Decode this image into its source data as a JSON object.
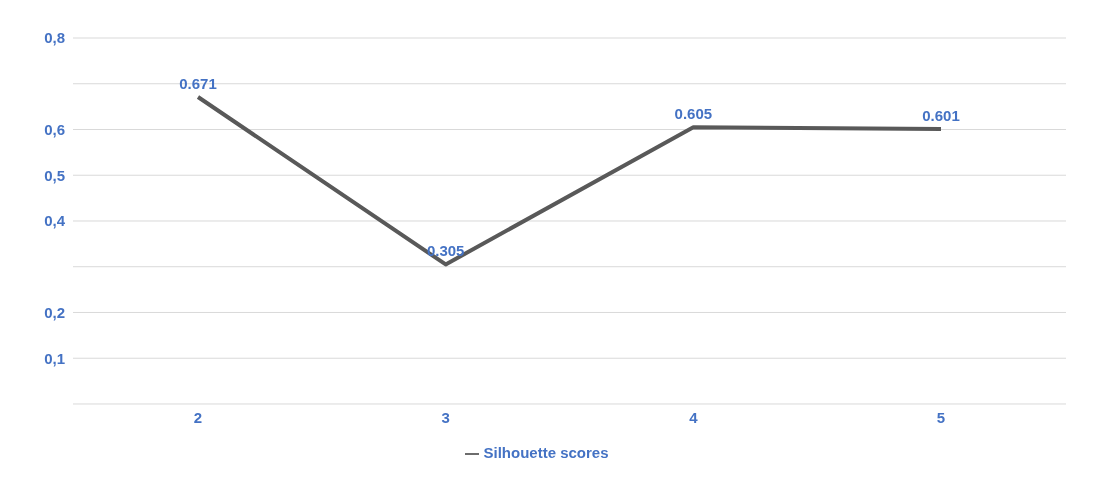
{
  "chart_data": {
    "type": "line",
    "categories": [
      "2",
      "3",
      "4",
      "5"
    ],
    "series": [
      {
        "name": "Silhouette scores",
        "color": "#595959",
        "values": [
          0.671,
          0.305,
          0.605,
          0.601
        ]
      }
    ],
    "ylim": [
      0,
      0.8
    ],
    "yticks": [
      {
        "value": 0,
        "label": null
      },
      {
        "value": 0.1,
        "label": "0,1"
      },
      {
        "value": 0.2,
        "label": "0,2"
      },
      {
        "value": 0.3,
        "label": null
      },
      {
        "value": 0.4,
        "label": "0,4"
      },
      {
        "value": 0.5,
        "label": "0,5"
      },
      {
        "value": 0.6,
        "label": "0,6"
      },
      {
        "value": 0.7,
        "label": null
      },
      {
        "value": 0.8,
        "label": "0,8"
      }
    ],
    "grid": "y",
    "legend": "bottom",
    "data_labels": true,
    "marker": "none",
    "line_style": "solid"
  }
}
